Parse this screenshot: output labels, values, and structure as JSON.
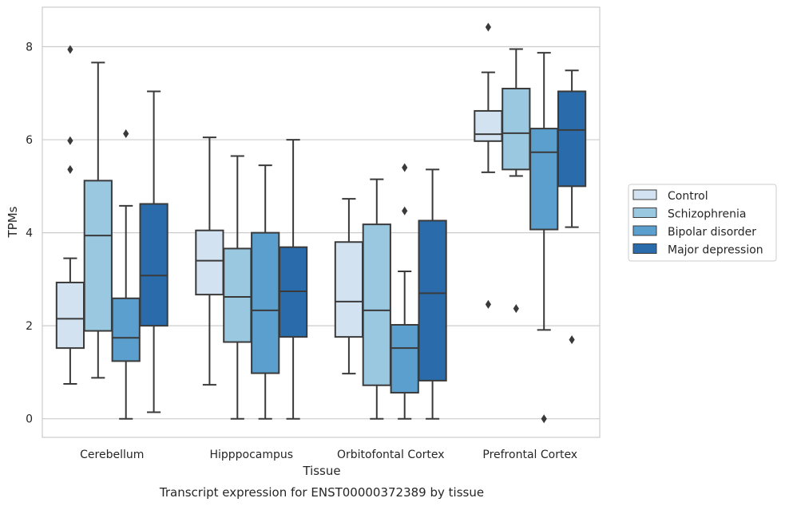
{
  "chart_data": {
    "type": "box",
    "caption": "Transcript expression for ENST00000372389 by tissue",
    "xlabel": "Tissue",
    "ylabel": "TPMs",
    "ylim": [
      -0.4,
      8.85
    ],
    "yticks": [
      0,
      2,
      4,
      6,
      8
    ],
    "grid": "horizontal",
    "legend_position": "right",
    "categories": [
      "Cerebellum",
      "Hipppocampus",
      "Orbitofontal Cortex",
      "Prefrontal Cortex"
    ],
    "series": [
      {
        "name": "Control",
        "color": "#d2e2f1",
        "boxes": [
          {
            "whisker_low": 0.75,
            "q1": 1.52,
            "median": 2.15,
            "q3": 2.93,
            "whisker_high": 3.45,
            "outliers": [
              5.36,
              5.98,
              7.94
            ]
          },
          {
            "whisker_low": 0.73,
            "q1": 2.67,
            "median": 3.4,
            "q3": 4.05,
            "whisker_high": 6.05,
            "outliers": []
          },
          {
            "whisker_low": 0.97,
            "q1": 1.76,
            "median": 2.52,
            "q3": 3.8,
            "whisker_high": 4.73,
            "outliers": []
          },
          {
            "whisker_low": 5.3,
            "q1": 5.97,
            "median": 6.12,
            "q3": 6.62,
            "whisker_high": 7.45,
            "outliers": [
              2.46,
              8.42
            ]
          }
        ]
      },
      {
        "name": "Schizophrenia",
        "color": "#9ac8e0",
        "boxes": [
          {
            "whisker_low": 0.88,
            "q1": 1.89,
            "median": 3.94,
            "q3": 5.12,
            "whisker_high": 7.66,
            "outliers": []
          },
          {
            "whisker_low": 0.0,
            "q1": 1.65,
            "median": 2.62,
            "q3": 3.66,
            "whisker_high": 5.65,
            "outliers": []
          },
          {
            "whisker_low": 0.0,
            "q1": 0.72,
            "median": 2.33,
            "q3": 4.18,
            "whisker_high": 5.15,
            "outliers": []
          },
          {
            "whisker_low": 5.22,
            "q1": 5.36,
            "median": 6.14,
            "q3": 7.1,
            "whisker_high": 7.95,
            "outliers": [
              2.37
            ]
          }
        ]
      },
      {
        "name": "Bipolar disorder",
        "color": "#5a9fcd",
        "boxes": [
          {
            "whisker_low": 0.0,
            "q1": 1.24,
            "median": 1.74,
            "q3": 2.59,
            "whisker_high": 4.58,
            "outliers": [
              6.13
            ]
          },
          {
            "whisker_low": 0.0,
            "q1": 0.98,
            "median": 2.33,
            "q3": 4.0,
            "whisker_high": 5.45,
            "outliers": []
          },
          {
            "whisker_low": 0.0,
            "q1": 0.56,
            "median": 1.52,
            "q3": 2.02,
            "whisker_high": 3.17,
            "outliers": [
              4.47,
              5.4
            ]
          },
          {
            "whisker_low": 1.91,
            "q1": 4.07,
            "median": 5.73,
            "q3": 6.24,
            "whisker_high": 7.87,
            "outliers": [
              0.0
            ]
          }
        ]
      },
      {
        "name": "Major depression",
        "color": "#2a6cab",
        "boxes": [
          {
            "whisker_low": 0.14,
            "q1": 2.0,
            "median": 3.08,
            "q3": 4.62,
            "whisker_high": 7.04,
            "outliers": []
          },
          {
            "whisker_low": 0.0,
            "q1": 1.76,
            "median": 2.74,
            "q3": 3.69,
            "whisker_high": 6.0,
            "outliers": []
          },
          {
            "whisker_low": 0.0,
            "q1": 0.82,
            "median": 2.7,
            "q3": 4.26,
            "whisker_high": 5.36,
            "outliers": []
          },
          {
            "whisker_low": 4.12,
            "q1": 5.0,
            "median": 6.21,
            "q3": 7.04,
            "whisker_high": 7.49,
            "outliers": [
              1.7
            ]
          }
        ]
      }
    ]
  }
}
